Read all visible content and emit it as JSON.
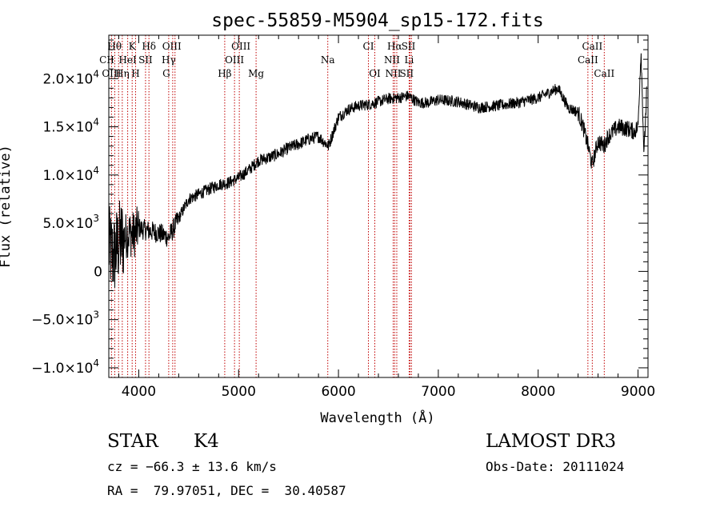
{
  "chart_data": {
    "type": "line",
    "title": "spec-55859-M5904_sp15-172.fits",
    "xlabel": "Wavelength (Å)",
    "ylabel": "Flux (relative)",
    "xlim": [
      3700,
      9100
    ],
    "ylim": [
      -11000,
      24500
    ],
    "x_ticks": [
      {
        "value": 4000,
        "label": "4000"
      },
      {
        "value": 5000,
        "label": "5000"
      },
      {
        "value": 6000,
        "label": "6000"
      },
      {
        "value": 7000,
        "label": "7000"
      },
      {
        "value": 8000,
        "label": "8000"
      },
      {
        "value": 9000,
        "label": "9000"
      }
    ],
    "y_ticks": [
      {
        "value": 20000,
        "mant": "2.0×10",
        "exp": "4"
      },
      {
        "value": 15000,
        "mant": "1.5×10",
        "exp": "4"
      },
      {
        "value": 10000,
        "mant": "1.0×10",
        "exp": "4"
      },
      {
        "value": 5000,
        "mant": "5.0×10",
        "exp": "3"
      },
      {
        "value": 0,
        "mant": "0",
        "exp": ""
      },
      {
        "value": -5000,
        "mant": "−5.0×10",
        "exp": "3"
      },
      {
        "value": -10000,
        "mant": "−1.0×10",
        "exp": "4"
      }
    ],
    "spectrum_trend": {
      "wavelength": [
        3700,
        3750,
        3800,
        3850,
        3900,
        3950,
        4000,
        4100,
        4200,
        4300,
        4400,
        4500,
        4600,
        4700,
        4800,
        4900,
        5000,
        5100,
        5200,
        5300,
        5400,
        5500,
        5600,
        5700,
        5800,
        5900,
        6000,
        6100,
        6200,
        6300,
        6400,
        6500,
        6600,
        6700,
        6800,
        6900,
        7000,
        7200,
        7400,
        7600,
        7800,
        8000,
        8100,
        8200,
        8300,
        8400,
        8450,
        8500,
        8540,
        8600,
        8660,
        8700,
        8800,
        8900,
        8960,
        9000,
        9030,
        9060,
        9100
      ],
      "flux": [
        2500,
        1500,
        3000,
        3500,
        4000,
        3800,
        4500,
        4200,
        4000,
        3500,
        5500,
        7500,
        8000,
        8500,
        9000,
        9200,
        9700,
        10500,
        11500,
        11800,
        12200,
        12800,
        13200,
        13700,
        14000,
        13000,
        16000,
        16800,
        17200,
        17300,
        17600,
        17900,
        18000,
        18200,
        17500,
        17500,
        17800,
        17600,
        17000,
        17200,
        17500,
        18000,
        18500,
        19000,
        17000,
        16500,
        15000,
        13000,
        11000,
        13500,
        13000,
        14000,
        15000,
        14800,
        14500,
        15000,
        23000,
        12000,
        22000
      ]
    },
    "line_labels": [
      {
        "text": "Hθ",
        "wl": 3798,
        "row": 0,
        "dx": -5
      },
      {
        "text": "K",
        "wl": 3934,
        "row": 0,
        "dx": 0
      },
      {
        "text": "Hδ",
        "wl": 4102,
        "row": 0,
        "dx": 0
      },
      {
        "text": "OIII",
        "wl": 4363,
        "row": 0,
        "dx": -4
      },
      {
        "text": "OIII",
        "wl": 4959,
        "row": 0,
        "dx": 8
      },
      {
        "text": "CI",
        "wl": 6300,
        "row": 0,
        "dx": 0
      },
      {
        "text": "Hα",
        "wl": 6563,
        "row": 0,
        "dx": 0
      },
      {
        "text": "SII",
        "wl": 6717,
        "row": 0,
        "dx": -2
      },
      {
        "text": "CaII",
        "wl": 8542,
        "row": 0,
        "dx": 0
      },
      {
        "text": "CII",
        "wl": 3760,
        "row": 1,
        "dx": -10
      },
      {
        "text": "HeI",
        "wl": 3889,
        "row": 1,
        "dx": 0
      },
      {
        "text": "SII",
        "wl": 4068,
        "row": 1,
        "dx": 0
      },
      {
        "text": "Hγ",
        "wl": 4340,
        "row": 1,
        "dx": -5
      },
      {
        "text": "OIII",
        "wl": 5007,
        "row": 1,
        "dx": -6
      },
      {
        "text": "Na",
        "wl": 5893,
        "row": 1,
        "dx": 0
      },
      {
        "text": "NII",
        "wl": 6584,
        "row": 1,
        "dx": -6
      },
      {
        "text": "Li",
        "wl": 6708,
        "row": 1,
        "dx": 0
      },
      {
        "text": "CaII",
        "wl": 8498,
        "row": 1,
        "dx": 0
      },
      {
        "text": "OIII",
        "wl": 3727,
        "row": 2,
        "dx": 0
      },
      {
        "text": "Hη",
        "wl": 3835,
        "row": 2,
        "dx": 0
      },
      {
        "text": "H",
        "wl": 3968,
        "row": 2,
        "dx": 0
      },
      {
        "text": "G",
        "wl": 4300,
        "row": 2,
        "dx": -3
      },
      {
        "text": "Hβ",
        "wl": 4861,
        "row": 2,
        "dx": 0
      },
      {
        "text": "Mg",
        "wl": 5175,
        "row": 2,
        "dx": 0
      },
      {
        "text": "OI",
        "wl": 6364,
        "row": 2,
        "dx": 0
      },
      {
        "text": "NII",
        "wl": 6548,
        "row": 2,
        "dx": 0
      },
      {
        "text": "SII",
        "wl": 6731,
        "row": 2,
        "dx": -6
      },
      {
        "text": "CaII",
        "wl": 8662,
        "row": 2,
        "dx": 0
      }
    ],
    "line_markers": [
      3727,
      3760,
      3798,
      3835,
      3889,
      3934,
      3968,
      4068,
      4102,
      4300,
      4340,
      4363,
      4861,
      4959,
      5007,
      5175,
      5893,
      6300,
      6364,
      6548,
      6563,
      6584,
      6708,
      6717,
      6731,
      8498,
      8542,
      8662
    ],
    "colors": {
      "marker": "#c00000",
      "spectrum": "#000000",
      "axes": "#000000"
    }
  },
  "info": {
    "object_class": "STAR",
    "subclass": "K4",
    "survey": "LAMOST DR3",
    "cz": "cz = −66.3 ± 13.6 km/s",
    "obs_date": "Obs-Date: 20111024",
    "coords": "RA =  79.97051, DEC =  30.40587"
  }
}
